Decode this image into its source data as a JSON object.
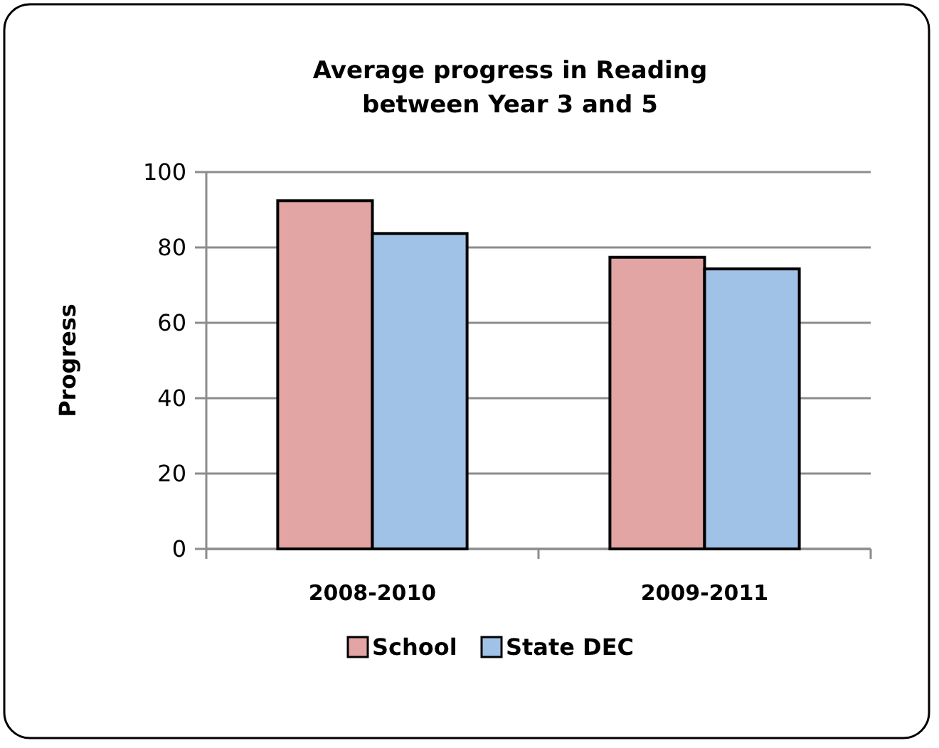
{
  "chart_data": {
    "type": "bar",
    "title": "Average progress in Reading\nbetween Year 3 and 5",
    "ylabel": "Progress",
    "categories": [
      "2008-2010",
      "2009-2011"
    ],
    "series": [
      {
        "name": "School",
        "color": "#e2a5a4",
        "values": [
          92.4,
          77.4
        ]
      },
      {
        "name": "State DEC",
        "color": "#a1c2e7",
        "values": [
          83.7,
          74.3
        ]
      }
    ],
    "ylim": [
      0,
      100
    ],
    "yticks": [
      0,
      20,
      40,
      60,
      80,
      100
    ],
    "grid": "y",
    "legend": "bottom"
  }
}
